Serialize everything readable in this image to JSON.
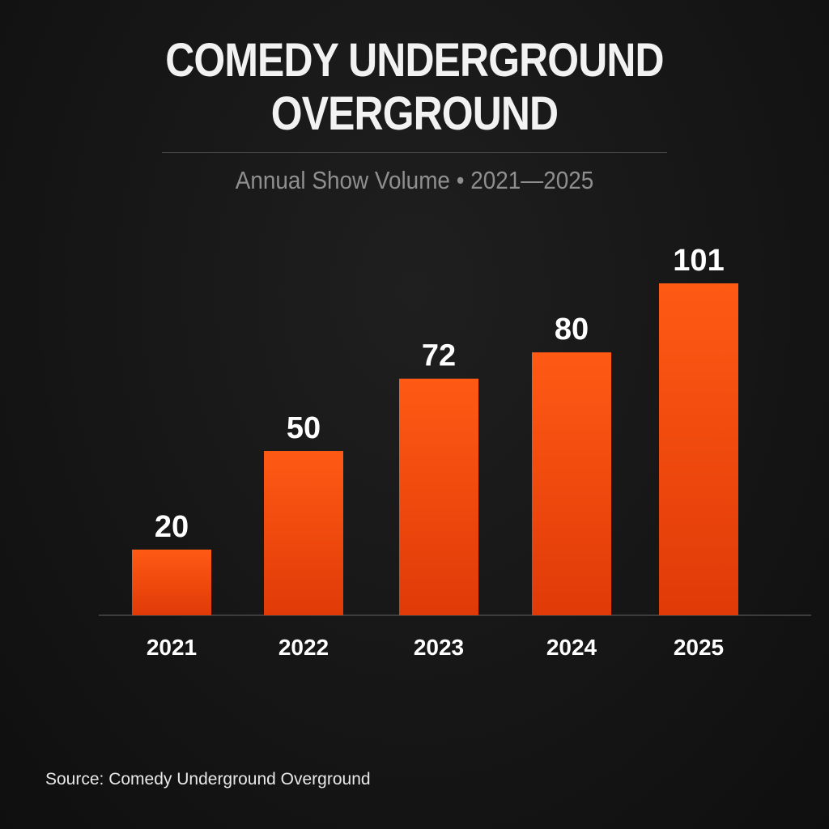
{
  "title_lines": [
    "COMEDY UNDERGROUND",
    "OVERGROUND"
  ],
  "subtitle": "Annual Show Volume • 2021—2025",
  "source": "Source: Comedy Underground Overground",
  "colors": {
    "bar_top": "#ff5a14",
    "bar_bottom": "#e03a08",
    "background": "#141414",
    "baseline": "#3c3c3c"
  },
  "chart_data": {
    "type": "bar",
    "title": "COMEDY UNDERGROUND OVERGROUND",
    "subtitle": "Annual Show Volume • 2021—2025",
    "categories": [
      "2021",
      "2022",
      "2023",
      "2024",
      "2025"
    ],
    "values": [
      20,
      50,
      72,
      80,
      101
    ],
    "value_labels": [
      "20",
      "50",
      "72",
      "80",
      "101"
    ],
    "xlabel": "",
    "ylabel": "",
    "ylim": [
      0,
      101
    ],
    "grid": false,
    "legend": "none"
  }
}
